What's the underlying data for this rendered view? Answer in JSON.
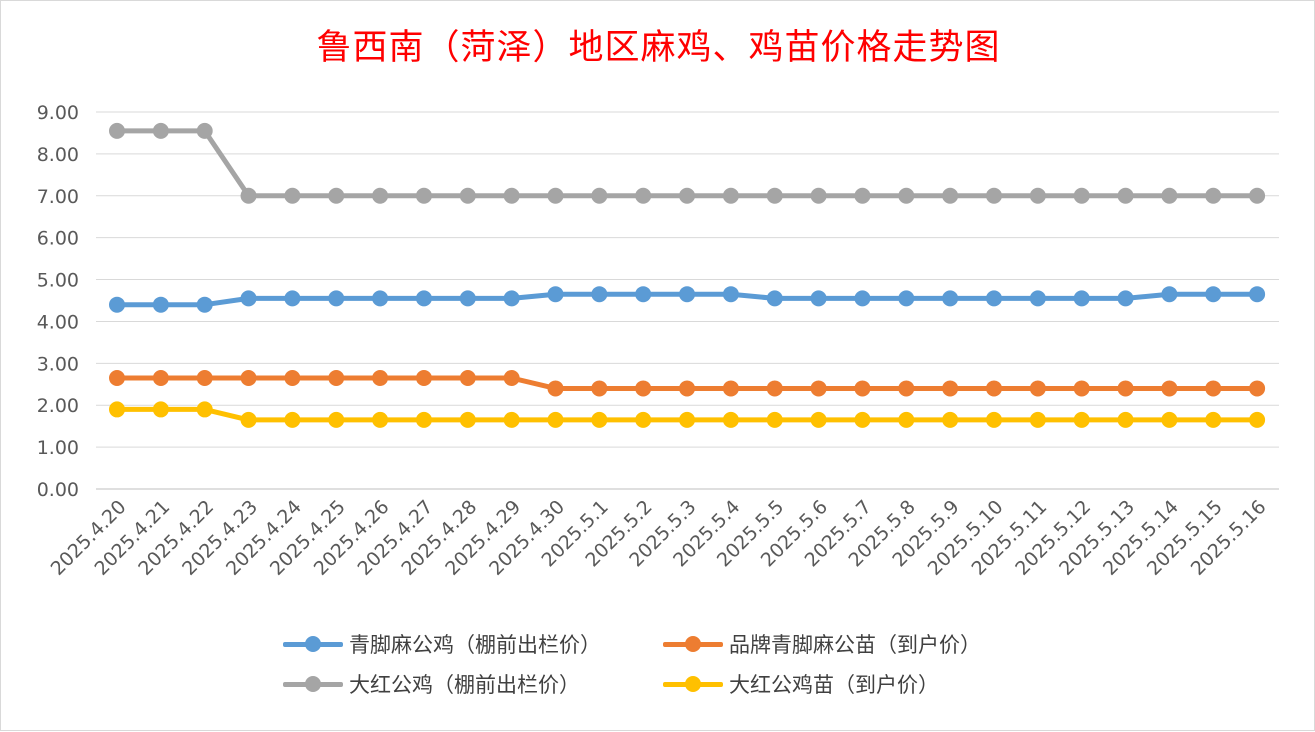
{
  "chart_data": {
    "type": "line",
    "title": "鲁西南（菏泽）地区麻鸡、鸡苗价格走势图",
    "xlabel": "",
    "ylabel": "",
    "ylim": [
      0,
      9
    ],
    "yticks": [
      "0.00",
      "1.00",
      "2.00",
      "3.00",
      "4.00",
      "5.00",
      "6.00",
      "7.00",
      "8.00",
      "9.00"
    ],
    "grid": true,
    "legend_position": "bottom",
    "categories": [
      "2025.4.20",
      "2025.4.21",
      "2025.4.22",
      "2025.4.23",
      "2025.4.24",
      "2025.4.25",
      "2025.4.26",
      "2025.4.27",
      "2025.4.28",
      "2025.4.29",
      "2025.4.30",
      "2025.5.1",
      "2025.5.2",
      "2025.5.3",
      "2025.5.4",
      "2025.5.5",
      "2025.5.6",
      "2025.5.7",
      "2025.5.8",
      "2025.5.9",
      "2025.5.10",
      "2025.5.11",
      "2025.5.12",
      "2025.5.13",
      "2025.5.14",
      "2025.5.15",
      "2025.5.16"
    ],
    "series": [
      {
        "name": "青脚麻公鸡（棚前出栏价）",
        "color": "#5b9bd5",
        "values": [
          4.4,
          4.4,
          4.4,
          4.55,
          4.55,
          4.55,
          4.55,
          4.55,
          4.55,
          4.55,
          4.65,
          4.65,
          4.65,
          4.65,
          4.65,
          4.55,
          4.55,
          4.55,
          4.55,
          4.55,
          4.55,
          4.55,
          4.55,
          4.55,
          4.65,
          4.65,
          4.65
        ]
      },
      {
        "name": "品牌青脚麻公苗（到户价）",
        "color": "#ed7d31",
        "values": [
          2.65,
          2.65,
          2.65,
          2.65,
          2.65,
          2.65,
          2.65,
          2.65,
          2.65,
          2.65,
          2.4,
          2.4,
          2.4,
          2.4,
          2.4,
          2.4,
          2.4,
          2.4,
          2.4,
          2.4,
          2.4,
          2.4,
          2.4,
          2.4,
          2.4,
          2.4,
          2.4
        ]
      },
      {
        "name": "大红公鸡（棚前出栏价）",
        "color": "#a5a5a5",
        "values": [
          8.55,
          8.55,
          8.55,
          7.0,
          7.0,
          7.0,
          7.0,
          7.0,
          7.0,
          7.0,
          7.0,
          7.0,
          7.0,
          7.0,
          7.0,
          7.0,
          7.0,
          7.0,
          7.0,
          7.0,
          7.0,
          7.0,
          7.0,
          7.0,
          7.0,
          7.0,
          7.0
        ]
      },
      {
        "name": "大红公鸡苗（到户价）",
        "color": "#ffc000",
        "values": [
          1.9,
          1.9,
          1.9,
          1.65,
          1.65,
          1.65,
          1.65,
          1.65,
          1.65,
          1.65,
          1.65,
          1.65,
          1.65,
          1.65,
          1.65,
          1.65,
          1.65,
          1.65,
          1.65,
          1.65,
          1.65,
          1.65,
          1.65,
          1.65,
          1.65,
          1.65,
          1.65
        ]
      }
    ]
  }
}
